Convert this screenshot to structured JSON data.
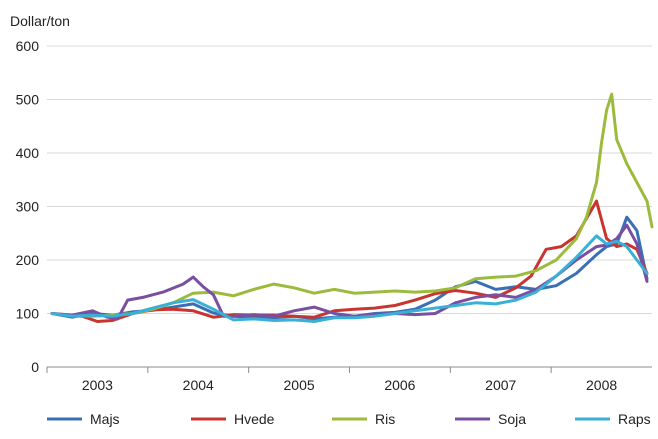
{
  "chart_data": {
    "type": "line",
    "ylabel": "Dollar/ton",
    "ylim": [
      0,
      600
    ],
    "yticks": [
      0,
      100,
      200,
      300,
      400,
      500,
      600
    ],
    "xlim": [
      2002.5,
      2008.5
    ],
    "xticks": [
      {
        "label": "2003",
        "x": 2003.0
      },
      {
        "label": "2004",
        "x": 2004.0
      },
      {
        "label": "2005",
        "x": 2005.0
      },
      {
        "label": "2006",
        "x": 2006.0
      },
      {
        "label": "2007",
        "x": 2007.0
      },
      {
        "label": "2008",
        "x": 2008.0
      }
    ],
    "grid": "horizontal",
    "legend_position": "bottom",
    "series": [
      {
        "name": "Majs",
        "color": "#3a6fb5",
        "x": [
          2002.55,
          2002.75,
          2002.95,
          2003.15,
          2003.35,
          2003.55,
          2003.75,
          2003.95,
          2004.15,
          2004.35,
          2004.55,
          2004.75,
          2004.95,
          2005.15,
          2005.35,
          2005.55,
          2005.75,
          2005.95,
          2006.15,
          2006.35,
          2006.55,
          2006.75,
          2006.95,
          2007.15,
          2007.35,
          2007.55,
          2007.75,
          2007.95,
          2008.05,
          2008.15,
          2008.2,
          2008.25,
          2008.35,
          2008.45
        ],
        "y": [
          100,
          93,
          100,
          97,
          103,
          106,
          112,
          118,
          101,
          95,
          93,
          92,
          95,
          90,
          93,
          95,
          100,
          102,
          108,
          125,
          150,
          160,
          145,
          150,
          145,
          152,
          175,
          210,
          225,
          230,
          255,
          280,
          255,
          165
        ]
      },
      {
        "name": "Hvede",
        "color": "#c8352e",
        "x": [
          2002.55,
          2002.7,
          2002.85,
          2003.0,
          2003.15,
          2003.35,
          2003.55,
          2003.75,
          2003.95,
          2004.15,
          2004.35,
          2004.55,
          2004.75,
          2004.95,
          2005.15,
          2005.35,
          2005.55,
          2005.75,
          2005.95,
          2006.15,
          2006.35,
          2006.55,
          2006.75,
          2006.95,
          2007.15,
          2007.3,
          2007.45,
          2007.6,
          2007.75,
          2007.95,
          2008.05,
          2008.15,
          2008.25,
          2008.35,
          2008.45
        ],
        "y": [
          100,
          97,
          95,
          85,
          87,
          100,
          107,
          108,
          105,
          93,
          98,
          97,
          97,
          95,
          93,
          105,
          108,
          110,
          115,
          125,
          137,
          143,
          138,
          130,
          148,
          170,
          220,
          225,
          245,
          310,
          240,
          225,
          230,
          220,
          175
        ]
      },
      {
        "name": "Ris",
        "color": "#9bbb3c",
        "x": [
          2002.55,
          2002.75,
          2002.95,
          2003.15,
          2003.35,
          2003.55,
          2003.75,
          2003.95,
          2004.15,
          2004.35,
          2004.55,
          2004.75,
          2004.95,
          2005.15,
          2005.35,
          2005.55,
          2005.75,
          2005.95,
          2006.15,
          2006.35,
          2006.55,
          2006.75,
          2006.95,
          2007.15,
          2007.35,
          2007.55,
          2007.75,
          2007.85,
          2007.95,
          2008.0,
          2008.05,
          2008.1,
          2008.15,
          2008.25,
          2008.35,
          2008.45,
          2008.5
        ],
        "y": [
          100,
          97,
          95,
          97,
          100,
          108,
          120,
          138,
          140,
          133,
          145,
          155,
          148,
          138,
          145,
          138,
          140,
          142,
          140,
          142,
          148,
          165,
          168,
          170,
          180,
          200,
          240,
          280,
          345,
          420,
          480,
          510,
          425,
          380,
          345,
          310,
          262
        ]
      },
      {
        "name": "Soja",
        "color": "#7a4fa0",
        "x": [
          2002.55,
          2002.75,
          2002.95,
          2003.1,
          2003.2,
          2003.3,
          2003.45,
          2003.65,
          2003.85,
          2003.95,
          2004.05,
          2004.15,
          2004.25,
          2004.35,
          2004.55,
          2004.75,
          2004.95,
          2005.15,
          2005.35,
          2005.55,
          2005.75,
          2005.95,
          2006.15,
          2006.35,
          2006.55,
          2006.75,
          2006.95,
          2007.15,
          2007.35,
          2007.55,
          2007.75,
          2007.95,
          2008.05,
          2008.15,
          2008.25,
          2008.35,
          2008.45
        ],
        "y": [
          100,
          97,
          105,
          93,
          90,
          125,
          130,
          140,
          155,
          168,
          150,
          135,
          95,
          95,
          98,
          95,
          105,
          112,
          100,
          95,
          98,
          100,
          98,
          100,
          120,
          130,
          135,
          130,
          145,
          170,
          200,
          225,
          228,
          240,
          265,
          230,
          160
        ]
      },
      {
        "name": "Raps",
        "color": "#3ab0d6",
        "x": [
          2002.55,
          2002.75,
          2002.95,
          2003.15,
          2003.35,
          2003.55,
          2003.75,
          2003.95,
          2004.15,
          2004.35,
          2004.55,
          2004.75,
          2004.95,
          2005.15,
          2005.35,
          2005.55,
          2005.75,
          2005.95,
          2006.15,
          2006.35,
          2006.55,
          2006.75,
          2006.95,
          2007.15,
          2007.35,
          2007.55,
          2007.75,
          2007.95,
          2008.05,
          2008.15,
          2008.25,
          2008.35,
          2008.45
        ],
        "y": [
          100,
          95,
          97,
          95,
          100,
          110,
          120,
          126,
          108,
          88,
          90,
          87,
          88,
          85,
          92,
          92,
          95,
          100,
          105,
          110,
          115,
          120,
          118,
          125,
          140,
          170,
          205,
          245,
          230,
          235,
          225,
          200,
          175
        ]
      }
    ]
  }
}
